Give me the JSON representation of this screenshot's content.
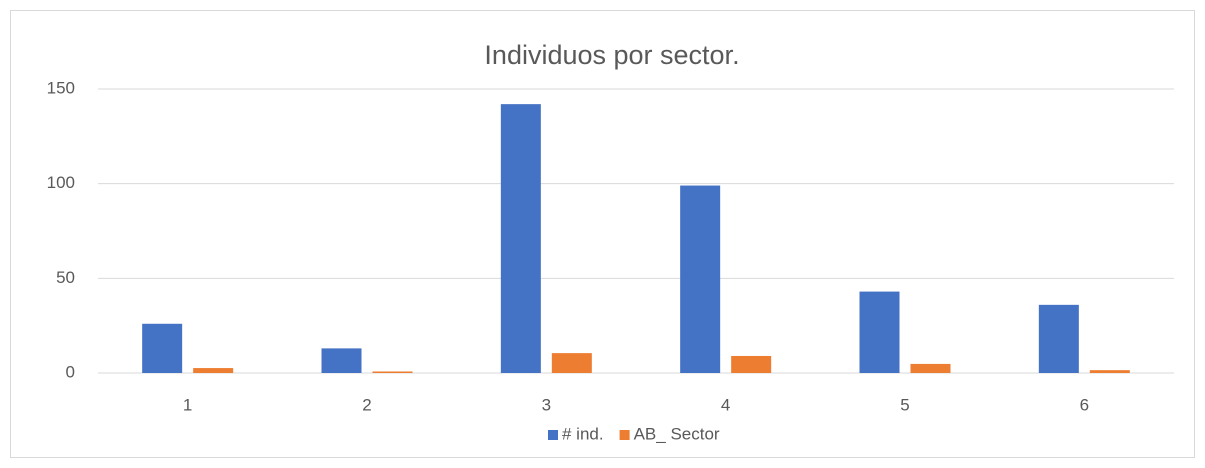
{
  "chart_data": {
    "type": "bar",
    "title": "Individuos por sector.",
    "categories": [
      "1",
      "2",
      "3",
      "4",
      "5",
      "6"
    ],
    "series": [
      {
        "name": "# ind.",
        "color": "#4472c4",
        "values": [
          26,
          13,
          142,
          99,
          43,
          36
        ]
      },
      {
        "name": "AB_ Sector",
        "color": "#ed7d31",
        "values": [
          2.6,
          0.8,
          10.5,
          9,
          4.8,
          1.5
        ]
      }
    ],
    "ylim": [
      0,
      150
    ],
    "yticks": [
      0,
      50,
      100,
      150
    ],
    "grid": true,
    "legend": "bottom"
  }
}
